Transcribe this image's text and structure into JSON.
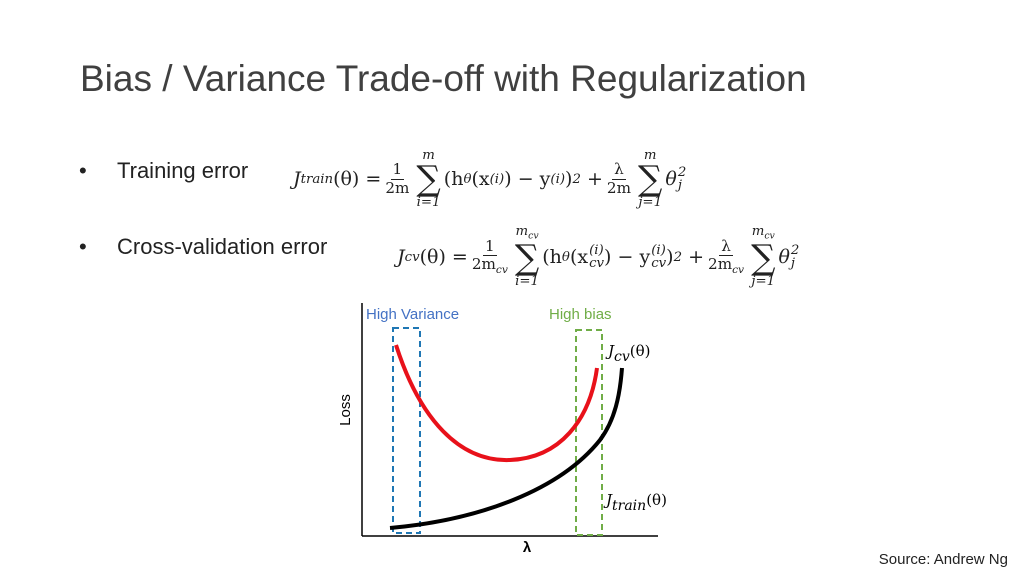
{
  "title": "Bias / Variance Trade-off with Regularization",
  "bullets": [
    {
      "label": "Training error",
      "formula": [
        "J",
        "train",
        "(θ) =",
        "1",
        "2m",
        "m",
        "∑",
        "i=1",
        "(h",
        "θ",
        "(x",
        "(i)",
        ") − y",
        "(i)",
        ")",
        "2",
        "+",
        "λ",
        "2m",
        "m",
        "∑",
        "j=1",
        "θ",
        "2",
        "j"
      ]
    },
    {
      "label": "Cross-validation error",
      "formula": [
        "J",
        "cv",
        "(θ) =",
        "1",
        "2m",
        "cv",
        "m",
        "cv",
        "∑",
        "i=1",
        "(h",
        "θ",
        "(x",
        "(i)",
        "cv",
        ") − y",
        "(i)",
        "cv",
        ")",
        "2",
        "+",
        "λ",
        "2m",
        "cv",
        "m",
        "cv",
        "∑",
        "j=1",
        "θ",
        "2",
        "j"
      ]
    }
  ],
  "chart": {
    "annotations": [
      "High Variance",
      "High bias"
    ],
    "y_label": "Loss",
    "x_label": "λ",
    "curve_labels": [
      [
        "J",
        "cv",
        "(θ)"
      ],
      [
        "J",
        "train",
        "(θ)"
      ]
    ]
  },
  "source": "Source: Andrew Ng"
}
